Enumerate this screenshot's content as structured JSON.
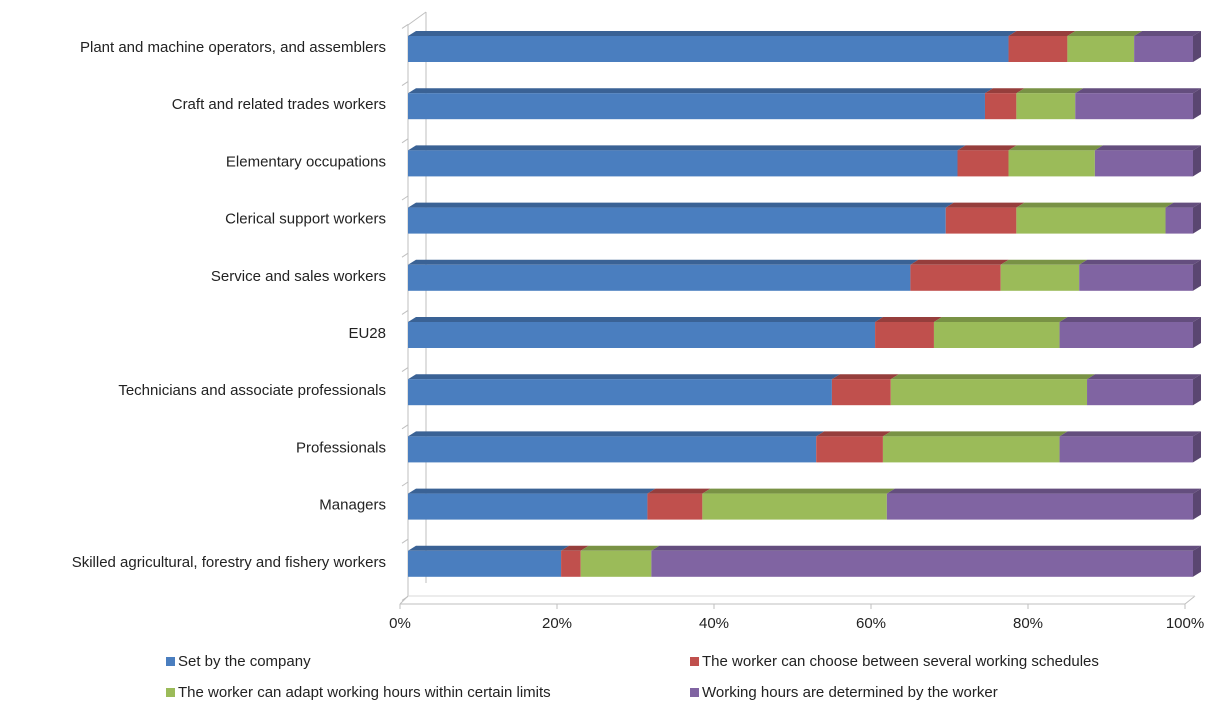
{
  "chart_data": {
    "type": "bar",
    "orientation": "horizontal",
    "stacked": true,
    "percent_stacked": true,
    "three_d": true,
    "categories": [
      "Plant and machine operators, and assemblers",
      "Craft and related trades workers",
      "Elementary occupations",
      "Clerical support workers",
      "Service and sales workers",
      "EU28",
      "Technicians and associate professionals",
      "Professionals",
      "Managers",
      "Skilled agricultural, forestry and fishery workers"
    ],
    "series": [
      {
        "name": "Set by the company",
        "color": "#4a7ebf",
        "values": [
          76.5,
          73.5,
          70,
          68.5,
          64,
          59.5,
          54,
          52,
          30.5,
          19.5
        ]
      },
      {
        "name": "The worker can choose between several working schedules",
        "color": "#c0504d",
        "values": [
          7.5,
          4,
          6.5,
          9,
          11.5,
          7.5,
          7.5,
          8.5,
          7,
          2.5
        ]
      },
      {
        "name": "The worker can adapt working hours within certain limits",
        "color": "#9bbb59",
        "values": [
          8.5,
          7.5,
          11,
          19,
          10,
          16,
          25,
          22.5,
          23.5,
          9
        ]
      },
      {
        "name": "Working hours are determined by the worker",
        "color": "#8064a2",
        "values": [
          7.5,
          15,
          12.5,
          3.5,
          14.5,
          17,
          13.5,
          17,
          39,
          69
        ]
      }
    ],
    "x_ticks": [
      "0%",
      "20%",
      "40%",
      "60%",
      "80%",
      "100%"
    ],
    "xlim": [
      0,
      100
    ],
    "legend_position": "bottom",
    "grid": false
  }
}
